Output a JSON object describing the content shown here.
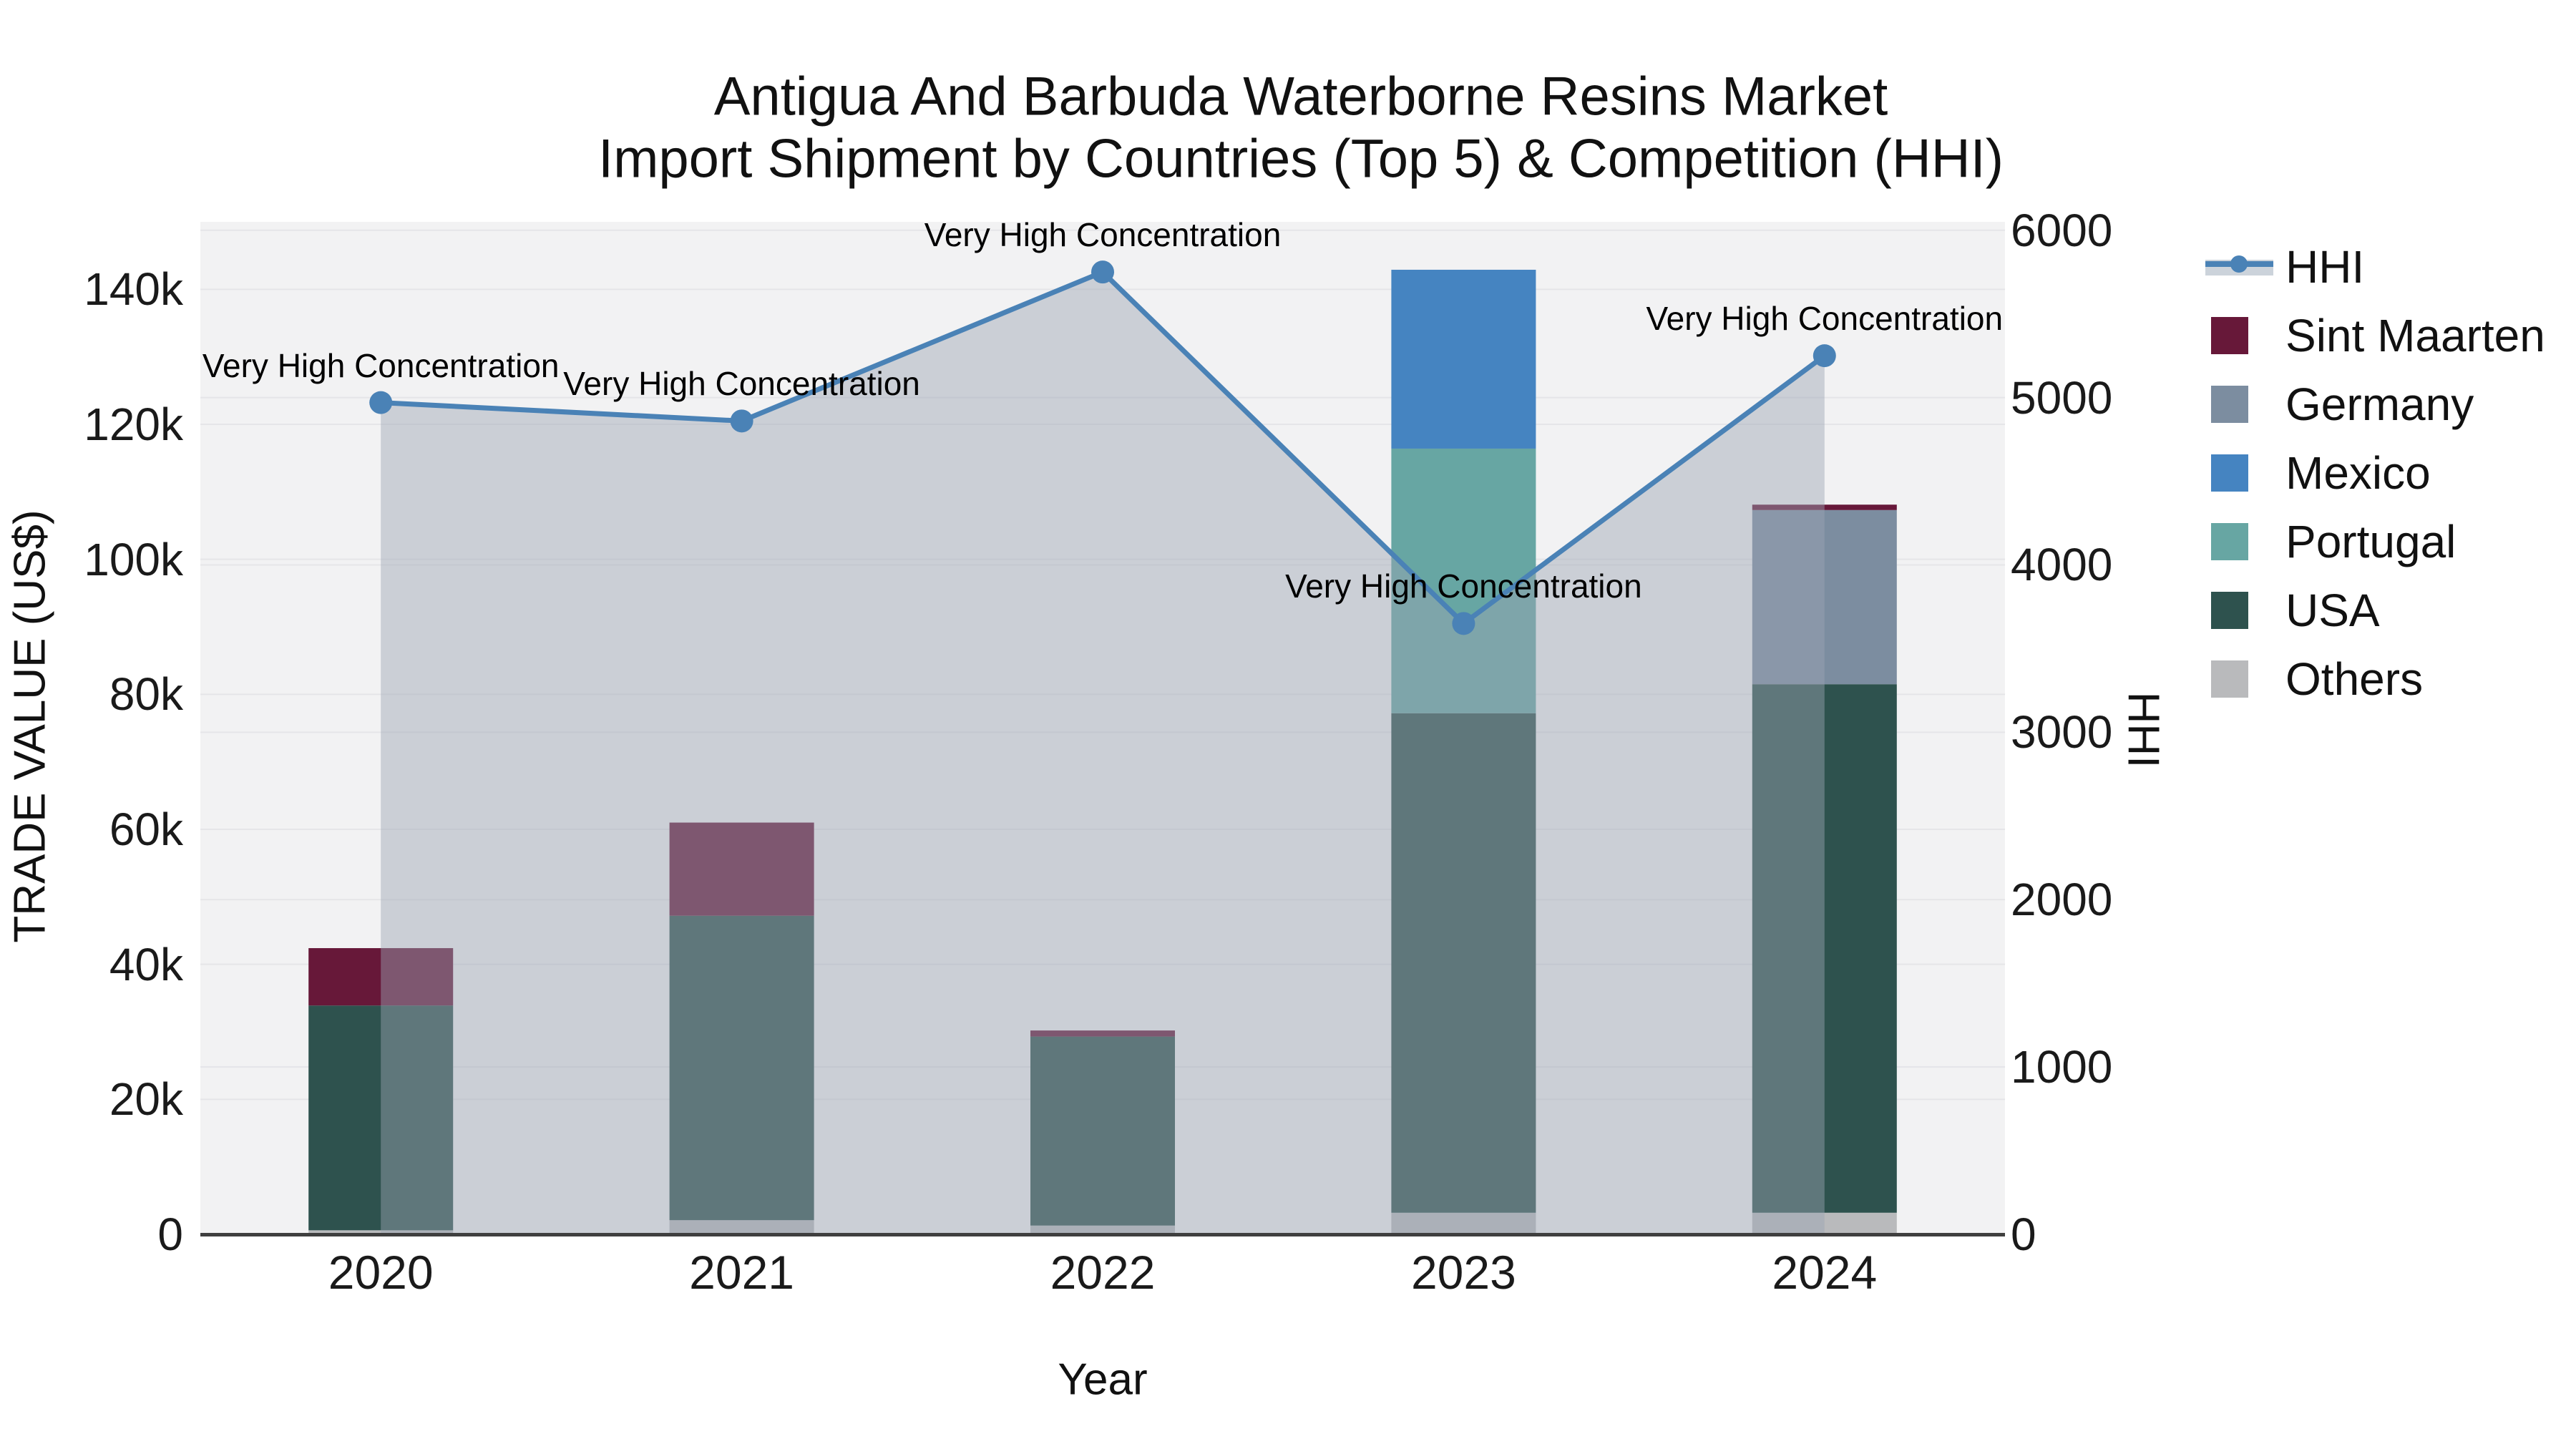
{
  "title": {
    "line1": "Antigua And Barbuda Waterborne Resins Market",
    "line2": "Import Shipment by Countries (Top 5) & Competition (HHI)"
  },
  "chart_data": {
    "type": "bar",
    "subtype": "stacked bars (left axis) + HHI line with markers and translucent area fill (right axis)",
    "categories": [
      "2020",
      "2021",
      "2022",
      "2023",
      "2024"
    ],
    "xlabel": "Year",
    "y_left": {
      "label": "TRADE VALUE (US$)",
      "lim": [
        0,
        150000
      ],
      "ticks": [
        0,
        20000,
        40000,
        60000,
        80000,
        100000,
        120000,
        140000
      ],
      "tick_labels": [
        "0",
        "20k",
        "40k",
        "60k",
        "80k",
        "100k",
        "120k",
        "140k"
      ]
    },
    "y_right": {
      "label": "HHI",
      "lim": [
        0,
        6050
      ],
      "ticks": [
        0,
        1000,
        2000,
        3000,
        4000,
        5000,
        6000
      ],
      "tick_labels": [
        "0",
        "1000",
        "2000",
        "3000",
        "4000",
        "5000",
        "6000"
      ]
    },
    "grid": "on",
    "series": [
      {
        "name": "Others",
        "color": "#b9babc",
        "values": [
          600,
          2100,
          1300,
          3200,
          3200
        ]
      },
      {
        "name": "USA",
        "color": "#2e524e",
        "values": [
          33300,
          45100,
          28000,
          74000,
          78300
        ]
      },
      {
        "name": "Portugal",
        "color": "#67a6a3",
        "values": [
          0,
          0,
          0,
          39200,
          0
        ]
      },
      {
        "name": "Mexico",
        "color": "#4584c1",
        "values": [
          0,
          0,
          0,
          26500,
          0
        ]
      },
      {
        "name": "Germany",
        "color": "#7c8da0",
        "values": [
          0,
          0,
          0,
          0,
          25800
        ]
      },
      {
        "name": "Sint Maarten",
        "color": "#671839",
        "values": [
          8500,
          13800,
          900,
          0,
          800
        ]
      }
    ],
    "bar_totals": [
      42400,
      61000,
      30200,
      142900,
      108100
    ],
    "hhi": {
      "name": "HHI",
      "line_color": "#4a82b6",
      "area_color": "rgba(155,165,180,0.45)",
      "values": [
        4970,
        4860,
        5750,
        3650,
        5250
      ],
      "annotations": [
        "Very High Concentration",
        "Very High Concentration",
        "Very High Concentration",
        "Very High Concentration",
        "Very High Concentration"
      ]
    }
  },
  "legend": {
    "items": [
      {
        "label": "HHI",
        "type": "line",
        "color": "#4a82b6"
      },
      {
        "label": "Sint Maarten",
        "type": "swatch",
        "color": "#671839"
      },
      {
        "label": "Germany",
        "type": "swatch",
        "color": "#7c8da0"
      },
      {
        "label": "Mexico",
        "type": "swatch",
        "color": "#4584c1"
      },
      {
        "label": "Portugal",
        "type": "swatch",
        "color": "#67a6a3"
      },
      {
        "label": "USA",
        "type": "swatch",
        "color": "#2e524e"
      },
      {
        "label": "Others",
        "type": "swatch",
        "color": "#b9babc"
      }
    ]
  },
  "colors": {
    "plot_bg": "#f2f2f3",
    "grid": "#e5e5e8",
    "axis_line": "#3f3f3f",
    "hhi_line": "#4a82b6",
    "hhi_area": "rgba(155,165,180,0.45)",
    "legend_area_band": "#ccd3db"
  }
}
